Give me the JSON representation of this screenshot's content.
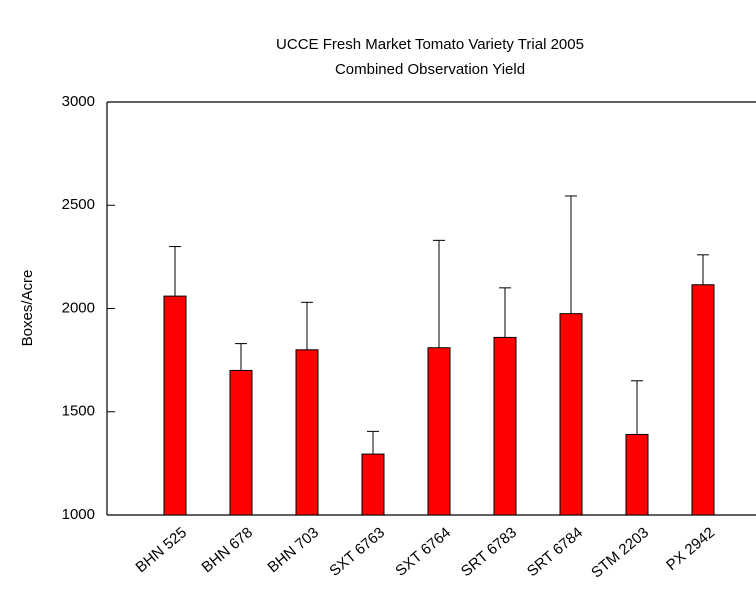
{
  "chart_data": {
    "type": "bar",
    "title": "UCCE Fresh Market Tomato Variety Trial 2005",
    "subtitle": "Combined Observation Yield",
    "y_label": "Boxes/Acre",
    "categories": [
      "BHN 525",
      "BHN 678",
      "BHN 703",
      "SXT 6763",
      "SXT 6764",
      "SRT 6783",
      "SRT 6784",
      "STM 2203",
      "PX 2942"
    ],
    "values": [
      2060,
      1700,
      1800,
      1295,
      1810,
      1860,
      1975,
      1390,
      2115
    ],
    "errors": [
      240,
      130,
      230,
      110,
      520,
      240,
      570,
      260,
      145
    ],
    "color": "#ff0000",
    "ylim": [
      1000,
      3000
    ],
    "yticks": [
      1000,
      1500,
      2000,
      2500,
      3000
    ],
    "grid": false
  }
}
